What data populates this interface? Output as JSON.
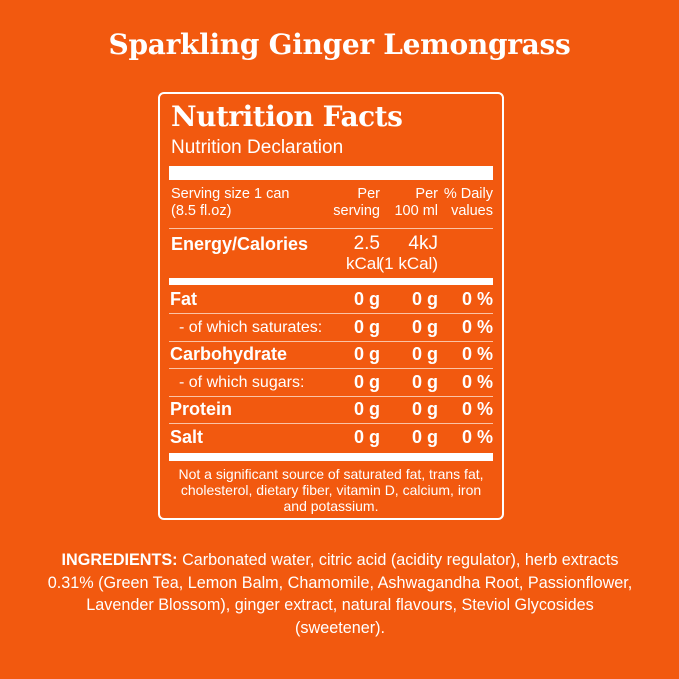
{
  "product_name": "Sparkling Ginger Lemongrass",
  "label": {
    "heading": "Nutrition Facts",
    "subheading": "Nutrition Declaration",
    "serving_size_line1": "Serving size 1 can",
    "serving_size_line2": "(8.5 fl.oz)",
    "col_per_serving_1": "Per",
    "col_per_serving_2": "serving",
    "col_per_100_1": "Per",
    "col_per_100_2": "100 ml",
    "col_daily_1": "% Daily",
    "col_daily_2": "values",
    "energy_label": "Energy/Calories",
    "energy_serving_1": "2.5",
    "energy_serving_2": "kCal",
    "energy_100_1": "4kJ",
    "energy_100_2": "(1 kCal)",
    "rows": [
      {
        "name": "Fat",
        "serving": "0 g",
        "per100": "0 g",
        "daily": "0 %"
      },
      {
        "name": "- of which saturates:",
        "serving": "0 g",
        "per100": "0 g",
        "daily": "0 %"
      },
      {
        "name": "Carbohydrate",
        "serving": "0 g",
        "per100": "0 g",
        "daily": "0 %"
      },
      {
        "name": "- of which sugars:",
        "serving": "0 g",
        "per100": "0 g",
        "daily": "0 %"
      },
      {
        "name": "Protein",
        "serving": "0 g",
        "per100": "0 g",
        "daily": "0 %"
      },
      {
        "name": "Salt",
        "serving": "0 g",
        "per100": "0 g",
        "daily": "0 %"
      }
    ],
    "footnote": "Not a significant source of saturated fat, trans fat, cholesterol, dietary fiber, vitamin D, calcium, iron and potassium."
  },
  "ingredients": {
    "heading": "INGREDIENTS:",
    "text": " Carbonated water, citric acid (acidity regulator),  herb extracts 0.31% (Green Tea, Lemon Balm, Chamomile, Ashwagandha Root, Passionflower, Lavender Blossom), ginger extract, natural flavours, Steviol Glycosides (sweetener)."
  },
  "colors": {
    "background": "#f2590f",
    "text": "#ffffff"
  }
}
